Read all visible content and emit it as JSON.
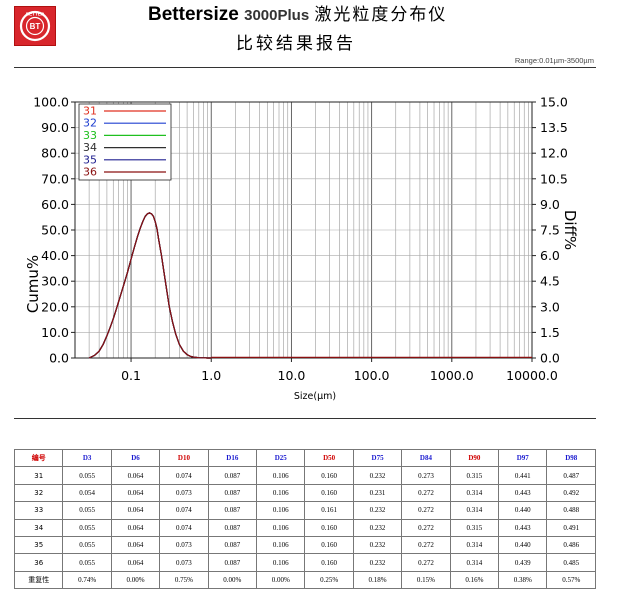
{
  "header": {
    "brand": "Bettersize",
    "model": "3000Plus",
    "title_cn": "激光粒度分布仪",
    "subtitle": "比较结果报告",
    "range": "Range:0.01µm-3500µm",
    "logo_text": "BETTER",
    "logo_center": "BT"
  },
  "chart_data": {
    "type": "line",
    "x_scale": "log",
    "xlim": [
      0.02,
      10000
    ],
    "ylim_left": [
      0,
      100
    ],
    "ylim_right": [
      0,
      15
    ],
    "xlabel": "Size(μm)",
    "ylabel_left": "Cumu%",
    "ylabel_right": "Diff%",
    "x_tick_labels": [
      "0.1",
      "1.0",
      "10.0",
      "100.0",
      "1000.0",
      "10000.0"
    ],
    "x_ticks": [
      0.1,
      1,
      10,
      100,
      1000,
      10000
    ],
    "y_left_tick_labels": [
      "100.0",
      "90.0",
      "80.0",
      "70.0",
      "60.0",
      "50.0",
      "40.0",
      "30.0",
      "20.0",
      "10.0",
      "0.0"
    ],
    "y_right_tick_labels": [
      "15.0",
      "13.5",
      "12.0",
      "10.5",
      "9.0",
      "7.5",
      "6.0",
      "4.5",
      "3.0",
      "1.5",
      "0.0"
    ],
    "grid": true,
    "legend_position": "top-left",
    "x": [
      0.03,
      0.035,
      0.04,
      0.045,
      0.05,
      0.055,
      0.06,
      0.065,
      0.07,
      0.08,
      0.09,
      0.1,
      0.11,
      0.12,
      0.13,
      0.14,
      0.15,
      0.16,
      0.17,
      0.18,
      0.19,
      0.2,
      0.21,
      0.22,
      0.24,
      0.26,
      0.28,
      0.3,
      0.33,
      0.36,
      0.4,
      0.45,
      0.5,
      0.55,
      0.6,
      0.7,
      0.8,
      0.9,
      1.0
    ],
    "series": [
      {
        "name": "31",
        "color": "#e03020",
        "values": [
          0.0,
          0.15,
          0.4,
          0.8,
          1.3,
          1.8,
          2.3,
          2.8,
          3.3,
          4.2,
          5.0,
          5.8,
          6.5,
          7.1,
          7.6,
          8.0,
          8.3,
          8.45,
          8.5,
          8.45,
          8.3,
          8.0,
          7.6,
          7.0,
          6.0,
          4.9,
          3.9,
          3.0,
          2.1,
          1.4,
          0.8,
          0.4,
          0.2,
          0.1,
          0.05,
          0.02,
          0.01,
          0.0,
          0.0
        ]
      },
      {
        "name": "32",
        "color": "#2040d0",
        "values": [
          0.0,
          0.15,
          0.4,
          0.8,
          1.3,
          1.8,
          2.3,
          2.8,
          3.3,
          4.2,
          5.0,
          5.8,
          6.5,
          7.1,
          7.6,
          8.0,
          8.3,
          8.45,
          8.5,
          8.45,
          8.3,
          8.0,
          7.6,
          7.0,
          6.0,
          4.9,
          3.9,
          3.0,
          2.1,
          1.4,
          0.8,
          0.4,
          0.2,
          0.1,
          0.05,
          0.02,
          0.01,
          0.0,
          0.0
        ]
      },
      {
        "name": "33",
        "color": "#20c020",
        "values": [
          0.0,
          0.15,
          0.4,
          0.8,
          1.3,
          1.8,
          2.3,
          2.8,
          3.3,
          4.2,
          5.0,
          5.8,
          6.5,
          7.1,
          7.6,
          8.0,
          8.3,
          8.45,
          8.5,
          8.45,
          8.3,
          8.0,
          7.6,
          7.0,
          6.0,
          4.9,
          3.9,
          3.0,
          2.1,
          1.4,
          0.8,
          0.4,
          0.2,
          0.1,
          0.05,
          0.02,
          0.01,
          0.0,
          0.0
        ]
      },
      {
        "name": "34",
        "color": "#303030",
        "values": [
          0.0,
          0.15,
          0.4,
          0.8,
          1.3,
          1.8,
          2.3,
          2.8,
          3.3,
          4.2,
          5.0,
          5.8,
          6.5,
          7.1,
          7.6,
          8.0,
          8.3,
          8.45,
          8.5,
          8.45,
          8.3,
          8.0,
          7.6,
          7.0,
          6.0,
          4.9,
          3.9,
          3.0,
          2.1,
          1.4,
          0.8,
          0.4,
          0.2,
          0.1,
          0.05,
          0.02,
          0.01,
          0.0,
          0.0
        ]
      },
      {
        "name": "35",
        "color": "#202090",
        "values": [
          0.0,
          0.15,
          0.4,
          0.8,
          1.3,
          1.8,
          2.3,
          2.8,
          3.3,
          4.2,
          5.0,
          5.8,
          6.5,
          7.1,
          7.6,
          8.0,
          8.3,
          8.45,
          8.5,
          8.45,
          8.3,
          8.0,
          7.6,
          7.0,
          6.0,
          4.9,
          3.9,
          3.0,
          2.1,
          1.4,
          0.8,
          0.4,
          0.2,
          0.1,
          0.05,
          0.02,
          0.01,
          0.0,
          0.0
        ]
      },
      {
        "name": "36",
        "color": "#8a1010",
        "values": [
          0.0,
          0.15,
          0.4,
          0.8,
          1.3,
          1.8,
          2.3,
          2.8,
          3.3,
          4.2,
          5.0,
          5.8,
          6.5,
          7.1,
          7.6,
          8.0,
          8.3,
          8.45,
          8.5,
          8.45,
          8.3,
          8.0,
          7.6,
          7.0,
          6.0,
          4.9,
          3.9,
          3.0,
          2.1,
          1.4,
          0.8,
          0.4,
          0.2,
          0.1,
          0.05,
          0.02,
          0.01,
          0.0,
          0.0
        ]
      }
    ]
  },
  "table": {
    "headers": [
      {
        "label": "编号",
        "color": "#d00000"
      },
      {
        "label": "D3",
        "color": "#1a1ad0"
      },
      {
        "label": "D6",
        "color": "#1a1ad0"
      },
      {
        "label": "D10",
        "color": "#d00000"
      },
      {
        "label": "D16",
        "color": "#1a1ad0"
      },
      {
        "label": "D25",
        "color": "#1a1ad0"
      },
      {
        "label": "D50",
        "color": "#d00000"
      },
      {
        "label": "D75",
        "color": "#1a1ad0"
      },
      {
        "label": "D84",
        "color": "#1a1ad0"
      },
      {
        "label": "D90",
        "color": "#d00000"
      },
      {
        "label": "D97",
        "color": "#1a1ad0"
      },
      {
        "label": "D98",
        "color": "#1a1ad0"
      }
    ],
    "rows": [
      [
        "31",
        "0.055",
        "0.064",
        "0.074",
        "0.087",
        "0.106",
        "0.160",
        "0.232",
        "0.273",
        "0.315",
        "0.441",
        "0.487"
      ],
      [
        "32",
        "0.054",
        "0.064",
        "0.073",
        "0.087",
        "0.106",
        "0.160",
        "0.231",
        "0.272",
        "0.314",
        "0.443",
        "0.492"
      ],
      [
        "33",
        "0.055",
        "0.064",
        "0.074",
        "0.087",
        "0.106",
        "0.161",
        "0.232",
        "0.272",
        "0.314",
        "0.440",
        "0.488"
      ],
      [
        "34",
        "0.055",
        "0.064",
        "0.074",
        "0.087",
        "0.106",
        "0.160",
        "0.232",
        "0.272",
        "0.315",
        "0.443",
        "0.491"
      ],
      [
        "35",
        "0.055",
        "0.064",
        "0.073",
        "0.087",
        "0.106",
        "0.160",
        "0.232",
        "0.272",
        "0.314",
        "0.440",
        "0.486"
      ],
      [
        "36",
        "0.055",
        "0.064",
        "0.073",
        "0.087",
        "0.106",
        "0.160",
        "0.232",
        "0.272",
        "0.314",
        "0.439",
        "0.485"
      ],
      [
        "重复性",
        "0.74%",
        "0.00%",
        "0.75%",
        "0.00%",
        "0.00%",
        "0.25%",
        "0.18%",
        "0.15%",
        "0.16%",
        "0.38%",
        "0.57%"
      ]
    ]
  }
}
